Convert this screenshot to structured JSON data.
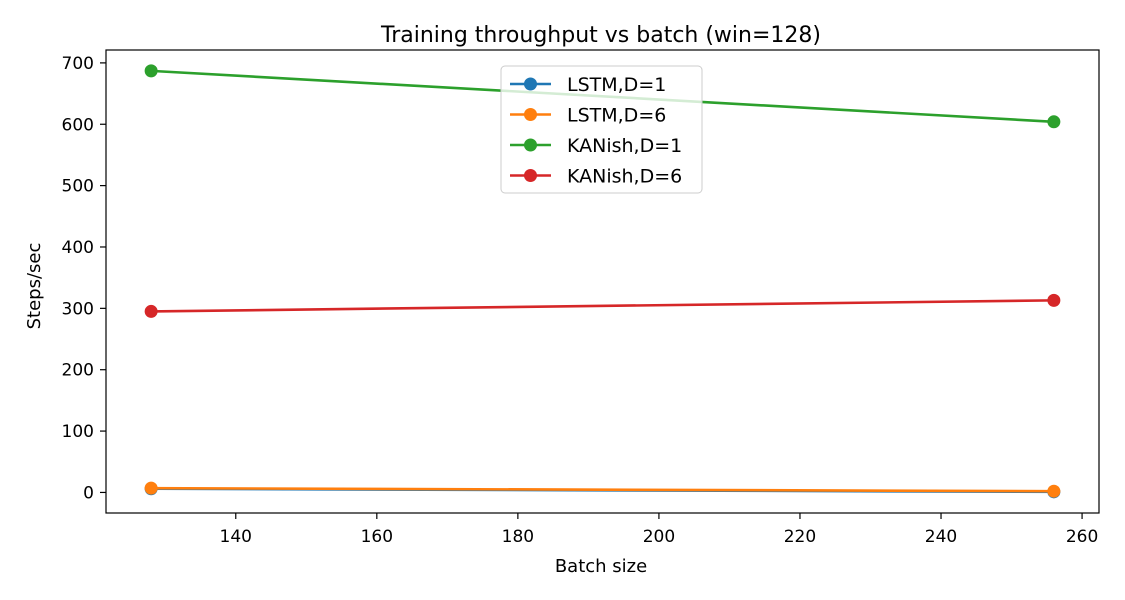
{
  "chart_data": {
    "type": "line",
    "title": "Training throughput vs batch (win=128)",
    "xlabel": "Batch size",
    "ylabel": "Steps/sec",
    "xlim": [
      121.6,
      262.4
    ],
    "ylim": [
      -33.5,
      721.0
    ],
    "x_ticks": [
      140,
      160,
      180,
      200,
      220,
      240,
      260
    ],
    "y_ticks": [
      0,
      100,
      200,
      300,
      400,
      500,
      600,
      700
    ],
    "x": [
      128,
      256
    ],
    "grid": false,
    "legend_position": "upper center",
    "series": [
      {
        "name": "LSTM,D=1",
        "color": "#1f77b4",
        "values": [
          6.0,
          1.0
        ]
      },
      {
        "name": "LSTM,D=6",
        "color": "#ff7f0e",
        "values": [
          7.0,
          2.0
        ]
      },
      {
        "name": "KANish,D=1",
        "color": "#2ca02c",
        "values": [
          687.0,
          604.0
        ]
      },
      {
        "name": "KANish,D=6",
        "color": "#d62728",
        "values": [
          295.0,
          313.0
        ]
      }
    ]
  }
}
